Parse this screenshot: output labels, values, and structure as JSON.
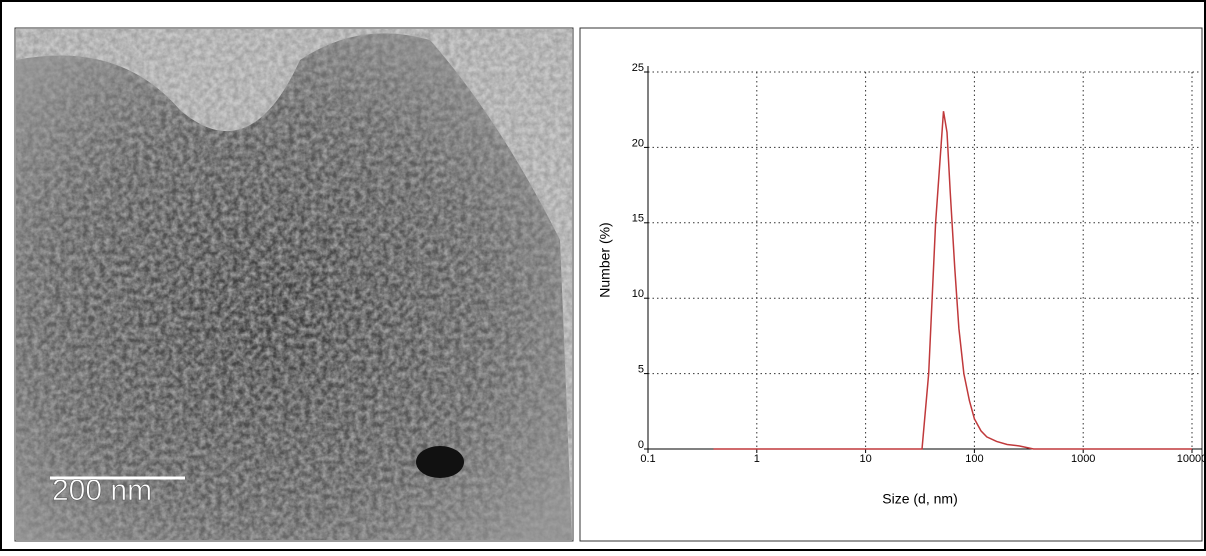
{
  "image": {
    "scale_bar": "200 nm"
  },
  "chart_data": {
    "type": "line",
    "xlabel": "Size (d, nm)",
    "ylabel": "Number (%)",
    "xscale": "log",
    "grid": true,
    "xlim": [
      0.1,
      10000
    ],
    "xticks": [
      0.1,
      1,
      10,
      100,
      1000,
      10000
    ],
    "ylim": [
      0,
      25
    ],
    "yticks": [
      0,
      5,
      10,
      15,
      20,
      25
    ],
    "series": [
      {
        "name": null,
        "color": "#c0393b",
        "x": [
          0.4,
          30,
          33,
          38,
          44,
          52,
          56,
          60,
          66,
          72,
          80,
          90,
          100,
          115,
          130,
          160,
          200,
          260,
          350,
          10000
        ],
        "values": [
          0,
          0,
          0,
          5,
          15,
          22.4,
          21,
          17,
          12,
          8,
          5,
          3.2,
          2,
          1.2,
          0.8,
          0.5,
          0.3,
          0.2,
          0,
          0
        ]
      }
    ]
  }
}
